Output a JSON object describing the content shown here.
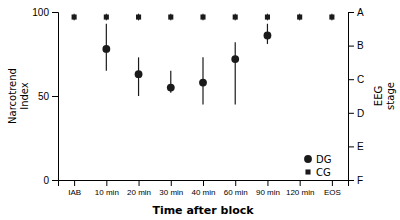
{
  "chart_data": {
    "type": "scatter",
    "categories": [
      "IAB",
      "10 min",
      "20 min",
      "30 min",
      "40 min",
      "60 min",
      "90 min",
      "120 min",
      "EOS"
    ],
    "series": [
      {
        "name": "DG",
        "marker": "circle",
        "color": "#1a1a1a",
        "values": [
          null,
          78,
          63,
          55,
          58,
          72,
          86,
          null,
          null
        ],
        "error_low": [
          null,
          13,
          13,
          3,
          13,
          27,
          5,
          null,
          null
        ],
        "error_high": [
          null,
          15,
          10,
          10,
          15,
          10,
          7,
          null,
          null
        ]
      },
      {
        "name": "CG",
        "marker": "square",
        "color": "#1a1a1a",
        "values": [
          97,
          97,
          97,
          97,
          97,
          97,
          97,
          97,
          97
        ],
        "error_low": [
          2,
          2,
          2,
          2,
          2,
          2,
          2,
          2,
          2
        ],
        "error_high": [
          2,
          2,
          2,
          2,
          2,
          2,
          2,
          2,
          2
        ]
      }
    ],
    "xlabel": "Time after block",
    "ylabel": "Narcotrend\nIndex",
    "y2label": "EEG\nstage",
    "ylim": [
      0,
      100
    ],
    "yticks": [
      0,
      50,
      100
    ],
    "y2lim": [
      0,
      100
    ],
    "y2ticks": [
      {
        "value": 100,
        "label": "A"
      },
      {
        "value": 80,
        "label": "B"
      },
      {
        "value": 60,
        "label": "C"
      },
      {
        "value": 40,
        "label": "D"
      },
      {
        "value": 20,
        "label": "E"
      },
      {
        "value": 0,
        "label": "F"
      }
    ],
    "legend": "lower right"
  }
}
